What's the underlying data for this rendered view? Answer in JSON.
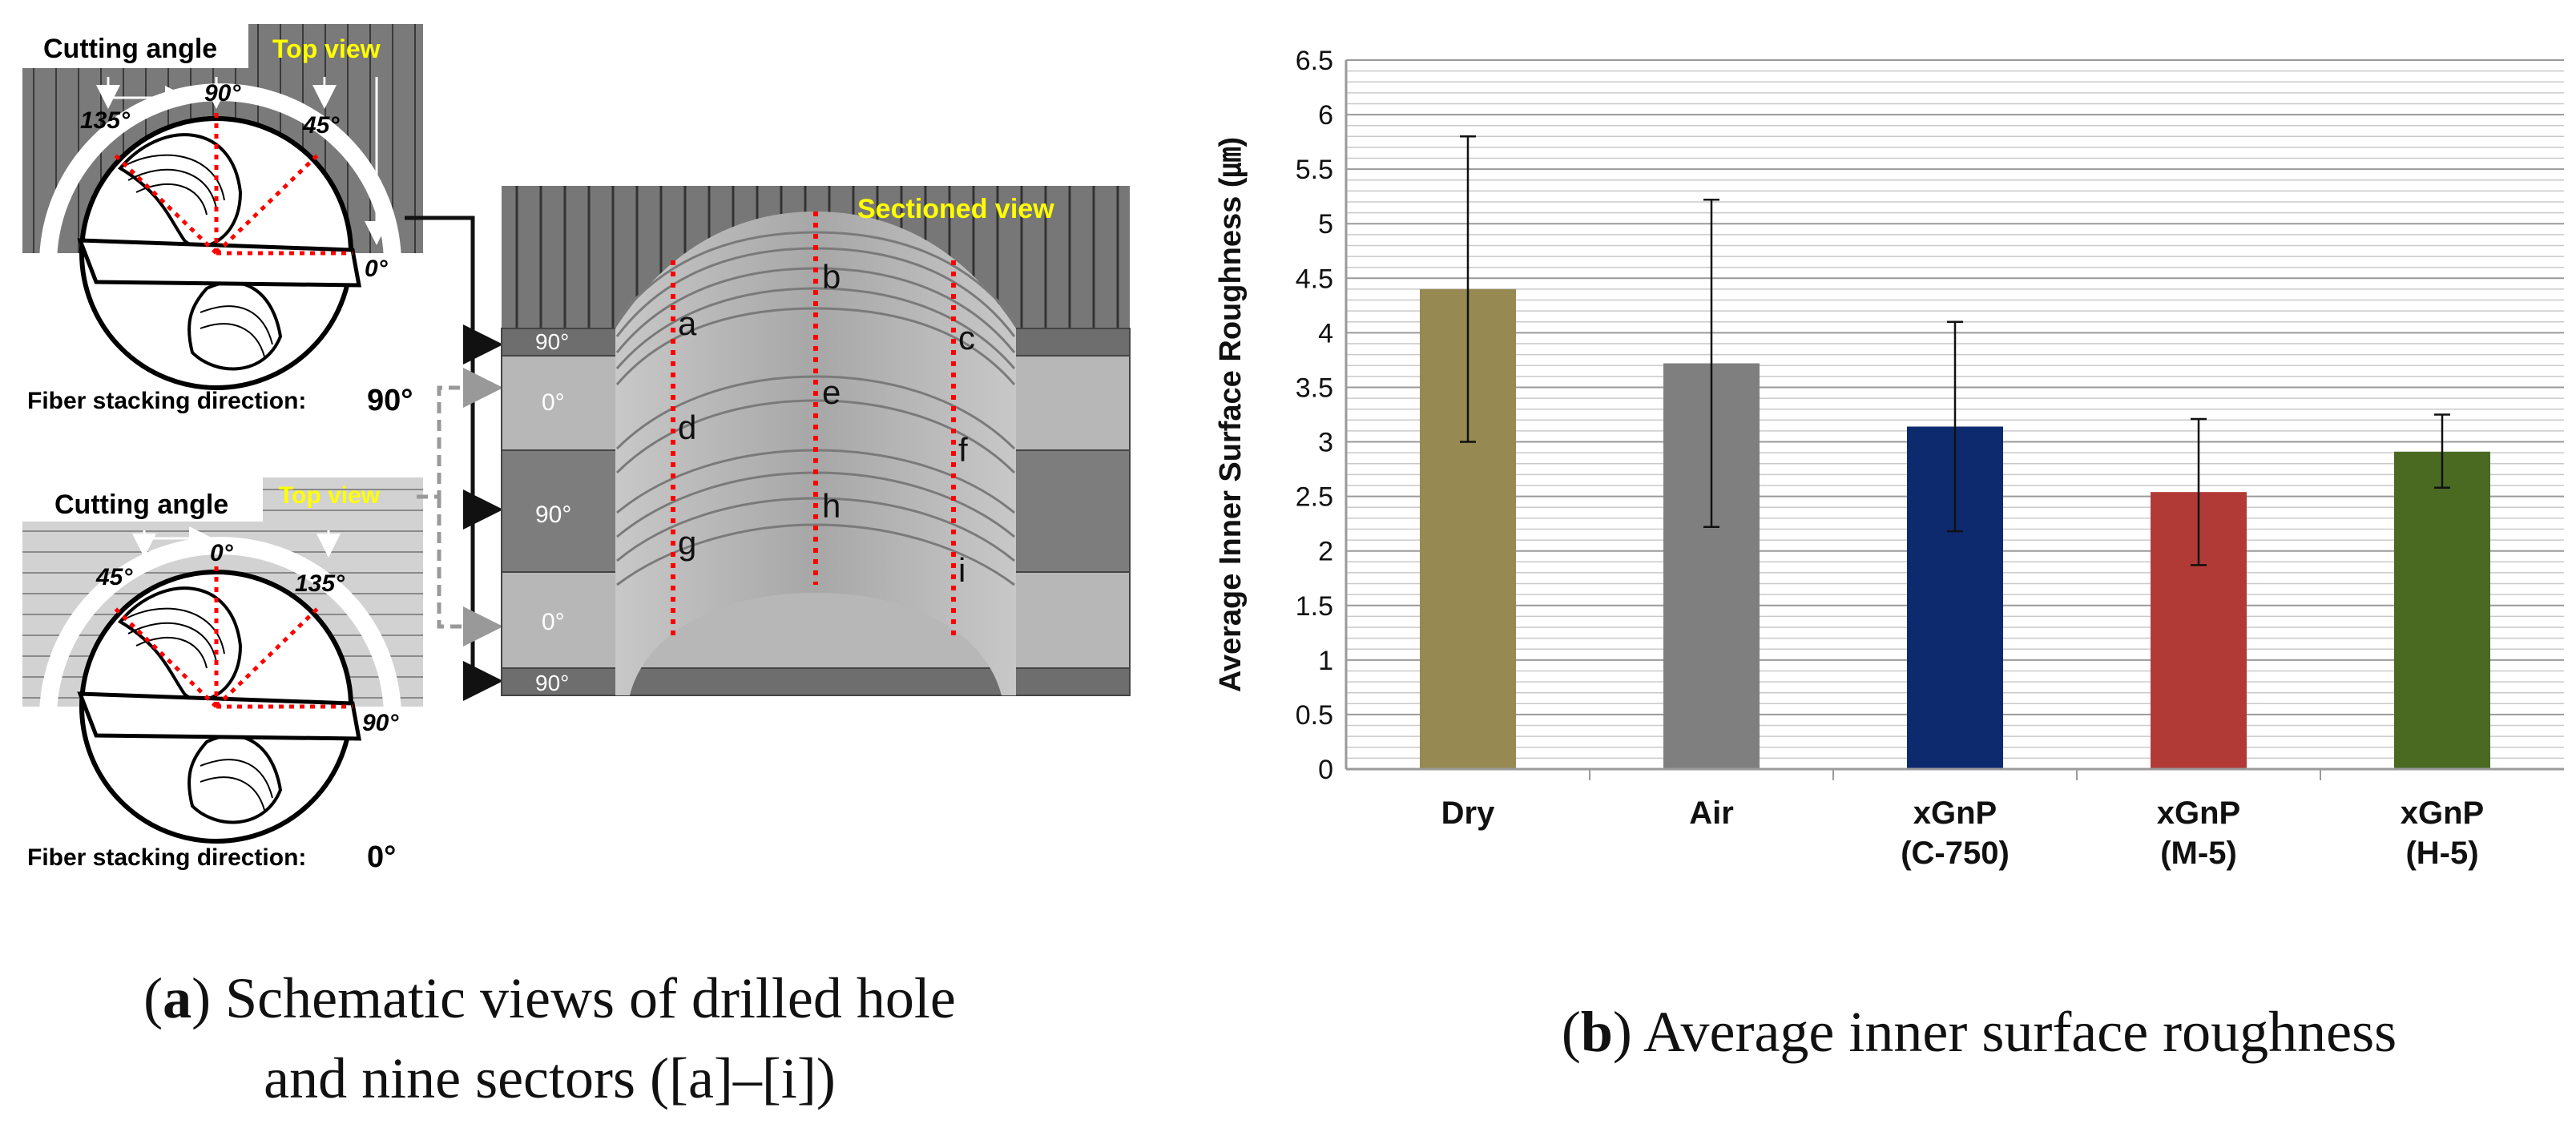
{
  "panel_a": {
    "top": {
      "cutting_angle_label": "Cutting angle",
      "view_label": "Top view",
      "angles": [
        "135°",
        "90°",
        "45°",
        "0°"
      ],
      "fiber_label": "Fiber stacking direction:",
      "fiber_value": "90°"
    },
    "bottom": {
      "cutting_angle_label": "Cutting angle",
      "view_label": "Top view",
      "angles": [
        "45°",
        "0°",
        "135°",
        "90°"
      ],
      "fiber_label": "Fiber stacking direction:",
      "fiber_value": "0°"
    },
    "sectioned": {
      "view_label": "Sectioned view",
      "ply_labels": [
        "90°",
        "0°",
        "90°",
        "0°",
        "90°"
      ],
      "sector_letters": [
        "a",
        "b",
        "c",
        "d",
        "e",
        "f",
        "g",
        "h",
        "i"
      ]
    },
    "caption_bold": "a",
    "caption_line1": "Schematic views of drilled hole",
    "caption_line2": "and nine sectors ([a]–[i])"
  },
  "panel_b": {
    "caption_bold": "b",
    "caption_text": "Average inner surface roughness"
  },
  "colors": {
    "dry": "#968a52",
    "air": "#7f7f7f",
    "c750": "#0e2a6e",
    "m5": "#b23a36",
    "h5": "#4a6a22",
    "highlight": "#ffff00",
    "dotted": "#ff0000"
  },
  "chart_data": {
    "type": "bar",
    "title": "",
    "xlabel": "",
    "ylabel": "Average Inner Surface Roughness (㎛)",
    "ylim": [
      0,
      6.5
    ],
    "yticks": [
      "0",
      "0.5",
      "1",
      "1.5",
      "2",
      "2.5",
      "3",
      "3.5",
      "4",
      "4.5",
      "5",
      "5.5",
      "6",
      "6.5"
    ],
    "categories": [
      {
        "line1": "Dry",
        "line2": ""
      },
      {
        "line1": "Air",
        "line2": ""
      },
      {
        "line1": "xGnP",
        "line2": "(C-750)"
      },
      {
        "line1": "xGnP",
        "line2": "(M-5)"
      },
      {
        "line1": "xGnP",
        "line2": "(H-5)"
      }
    ],
    "values": [
      4.4,
      3.72,
      3.14,
      2.54,
      2.91
    ],
    "error_low": [
      3.0,
      2.22,
      2.18,
      1.87,
      2.58
    ],
    "error_high": [
      5.8,
      5.22,
      4.1,
      3.21,
      3.25
    ],
    "bar_colors": [
      "#968a52",
      "#7f7f7f",
      "#0e2a6e",
      "#b23a36",
      "#4a6a22"
    ],
    "grid": true,
    "legend": "none"
  }
}
